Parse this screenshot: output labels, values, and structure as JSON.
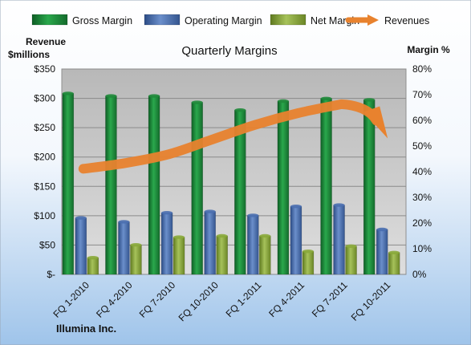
{
  "chart_data": {
    "type": "bar",
    "title": "Quarterly Margins",
    "company": "Illumina Inc.",
    "left_axis_label": [
      "Revenue",
      "$millions"
    ],
    "right_axis_label": "Margin %",
    "left_ticks": [
      "$-",
      "$50",
      "$100",
      "$150",
      "$200",
      "$250",
      "$300",
      "$350"
    ],
    "right_ticks": [
      "0%",
      "10%",
      "20%",
      "30%",
      "40%",
      "50%",
      "60%",
      "70%",
      "80%"
    ],
    "left_ylim": [
      0,
      350
    ],
    "right_ylim": [
      0,
      80
    ],
    "categories": [
      "FQ 1-2010",
      "FQ 4-2010",
      "FQ 7-2010",
      "FQ 10-2010",
      "FQ 1-2011",
      "FQ 4-2011",
      "FQ 7-2011",
      "FQ 10-2011"
    ],
    "series": [
      {
        "name": "Gross Margin",
        "axis": "right",
        "values": [
          70.5,
          69.5,
          69.5,
          67,
          64,
          67.5,
          68.5,
          68
        ],
        "color": "#1f8a3a"
      },
      {
        "name": "Operating Margin",
        "axis": "right",
        "values": [
          22,
          20.5,
          24,
          24.5,
          23,
          26.5,
          27,
          17.5
        ],
        "color": "#4a6fb0"
      },
      {
        "name": "Net Margin",
        "axis": "right",
        "values": [
          6.5,
          11.5,
          14.5,
          15,
          15,
          9,
          11,
          8.5
        ],
        "color": "#8aaa3a"
      },
      {
        "name": "Revenues",
        "axis": "left",
        "type": "arrow",
        "values": [
          180,
          190,
          205,
          230,
          255,
          275,
          290,
          240
        ],
        "color": "#e8822e"
      }
    ],
    "legend_position": "top",
    "grid": true
  }
}
